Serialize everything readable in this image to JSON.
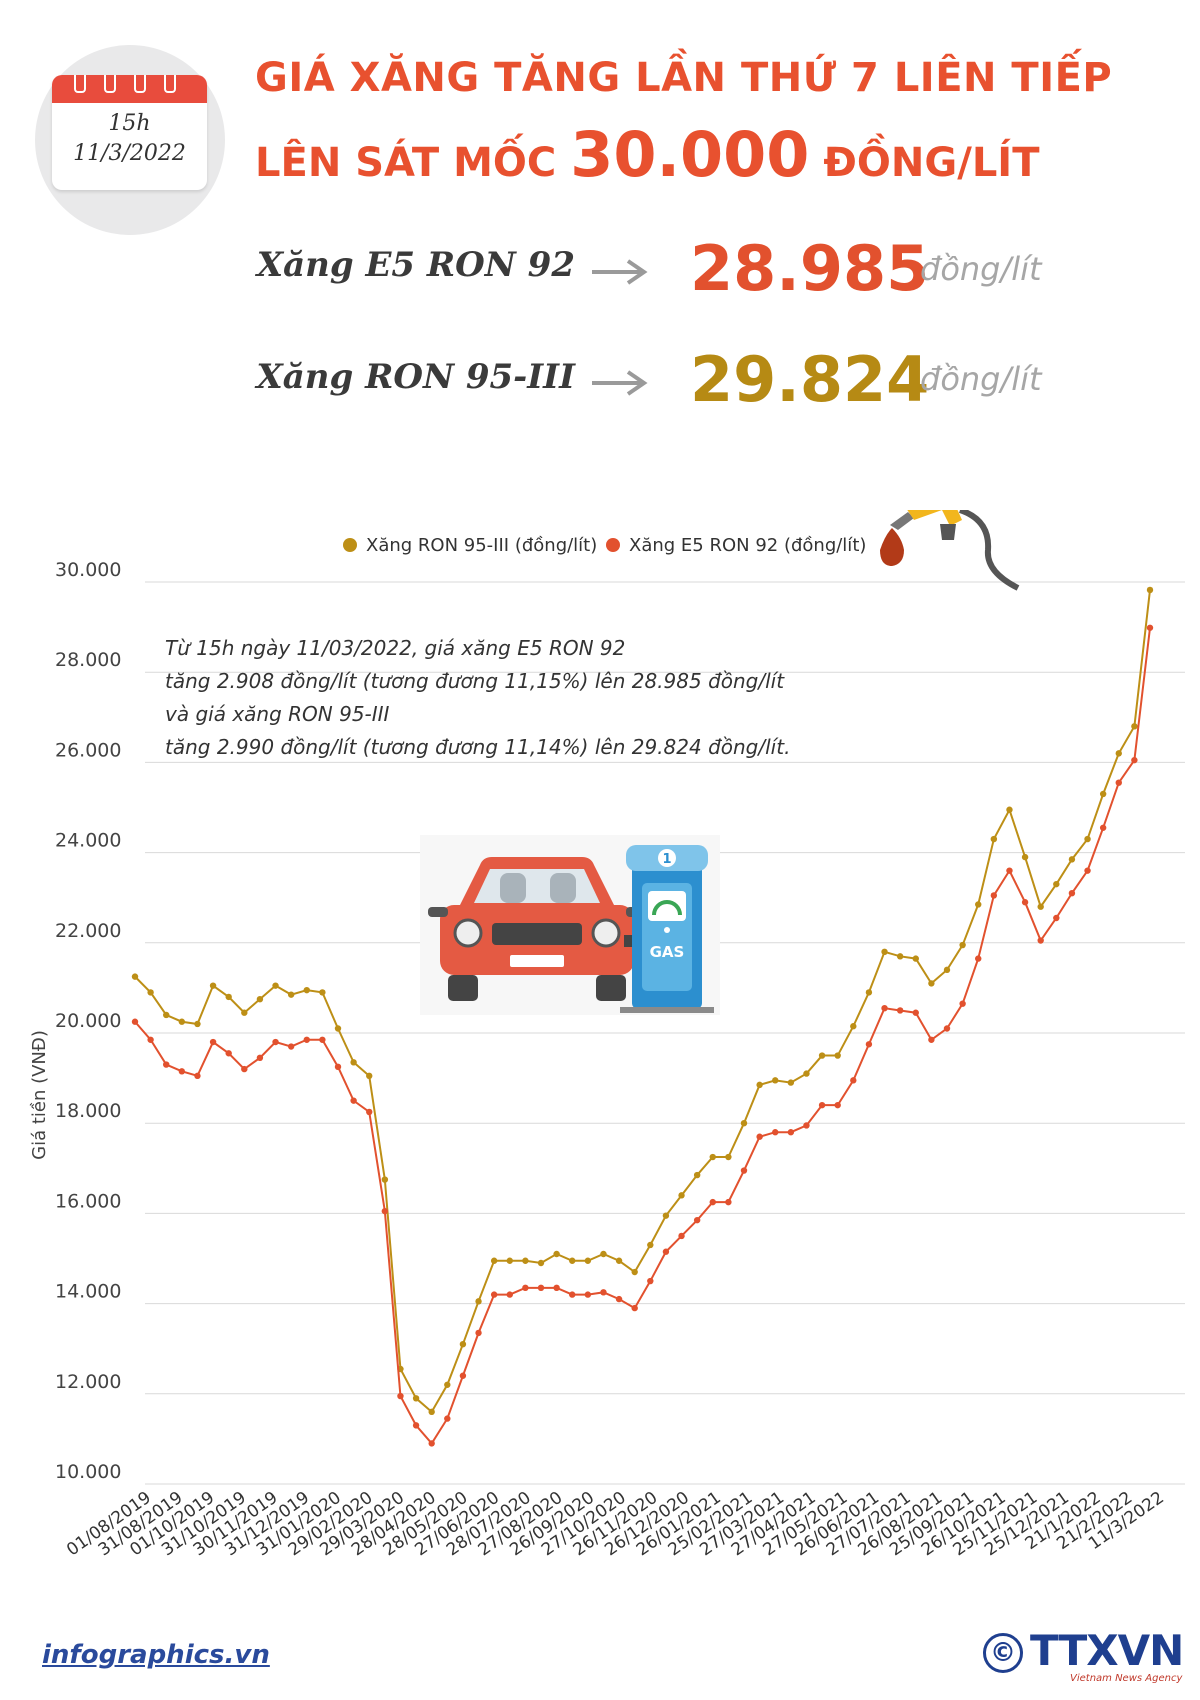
{
  "calendar": {
    "time": "15h",
    "date": "11/3/2022"
  },
  "title": {
    "line1": "GIÁ XĂNG TĂNG LẦN THỨ 7 LIÊN TIẾP",
    "line2_prefix": "LÊN SÁT MỐC ",
    "line2_number": "30.000",
    "line2_suffix": " ĐỒNG/LÍT"
  },
  "prices": [
    {
      "name": "Xăng E5 RON 92",
      "value": "28.985",
      "unit": "đồng/lít",
      "color": "#e2512e"
    },
    {
      "name": "Xăng RON 95-III",
      "value": "29.824",
      "unit": "đồng/lít",
      "color": "#b68a14"
    }
  ],
  "annotation": [
    "Từ 15h ngày 11/03/2022, giá xăng E5 RON 92",
    "tăng 2.908 đồng/lít (tương đương 11,15%) lên 28.985 đồng/lít",
    "và giá xăng RON 95-III",
    "tăng 2.990 đồng/lít (tương đương 11,14%) lên 29.824 đồng/lít."
  ],
  "pump_label": "GAS",
  "pump_number": "1",
  "chart_data": {
    "type": "line",
    "ylabel": "Giá tiền (VNĐ)",
    "ylim": [
      10000,
      30000
    ],
    "yticks": [
      10000,
      12000,
      14000,
      16000,
      18000,
      20000,
      22000,
      24000,
      26000,
      28000,
      30000
    ],
    "ytick_labels": [
      "10.000",
      "12.000",
      "14.000",
      "16.000",
      "18.000",
      "20.000",
      "22.000",
      "24.000",
      "26.000",
      "28.000",
      "30.000"
    ],
    "xtick_labels": [
      "01/08/2019",
      "31/08/2019",
      "01/10/2019",
      "31/10/2019",
      "30/11/2019",
      "31/12/2019",
      "31/01/2020",
      "29/02/2020",
      "29/03/2020",
      "28/04/2020",
      "28/05/2020",
      "27/06/2020",
      "28/07/2020",
      "27/08/2020",
      "26/09/2020",
      "27/10/2020",
      "26/11/2020",
      "26/12/2020",
      "26/01/2021",
      "25/02/2021",
      "27/03/2021",
      "27/04/2021",
      "27/05/2021",
      "26/06/2021",
      "27/07/2021",
      "26/08/2021",
      "25/09/2021",
      "26/10/2021",
      "25/11/2021",
      "25/12/2021",
      "21/1/2022",
      "21/2/2022",
      "11/3/2022"
    ],
    "legend_position": "top",
    "grid": true,
    "series": [
      {
        "name": "Xăng RON 95-III (đồng/lít)",
        "color": "#bd8f16",
        "values": [
          21250,
          20900,
          20400,
          20250,
          20200,
          21050,
          20800,
          20450,
          20750,
          21050,
          20850,
          20950,
          20900,
          20100,
          19350,
          19050,
          16750,
          12550,
          11900,
          11600,
          12200,
          13100,
          14050,
          14950,
          14950,
          14950,
          14900,
          15100,
          14950,
          14950,
          15100,
          14950,
          14700,
          15300,
          15950,
          16400,
          16850,
          17250,
          17250,
          18000,
          18850,
          18950,
          18900,
          19100,
          19500,
          19500,
          20150,
          20900,
          21800,
          21700,
          21650,
          21100,
          21400,
          21950,
          22850,
          24300,
          24950,
          23900,
          22800,
          23300,
          23850,
          24300,
          25300,
          26200,
          26800,
          29824
        ]
      },
      {
        "name": "Xăng E5 RON 92 (đồng/lít)",
        "color": "#e2512e",
        "values": [
          20250,
          19850,
          19300,
          19150,
          19050,
          19800,
          19550,
          19200,
          19450,
          19800,
          19700,
          19850,
          19850,
          19250,
          18500,
          18250,
          16050,
          11950,
          11300,
          10900,
          11450,
          12400,
          13350,
          14200,
          14200,
          14350,
          14350,
          14350,
          14200,
          14200,
          14250,
          14100,
          13900,
          14500,
          15150,
          15500,
          15850,
          16250,
          16250,
          16950,
          17700,
          17800,
          17800,
          17950,
          18400,
          18400,
          18950,
          19750,
          20550,
          20500,
          20450,
          19850,
          20100,
          20650,
          21650,
          23050,
          23600,
          22900,
          22050,
          22550,
          23100,
          23600,
          24550,
          25550,
          26050,
          28985
        ]
      }
    ]
  }
}
